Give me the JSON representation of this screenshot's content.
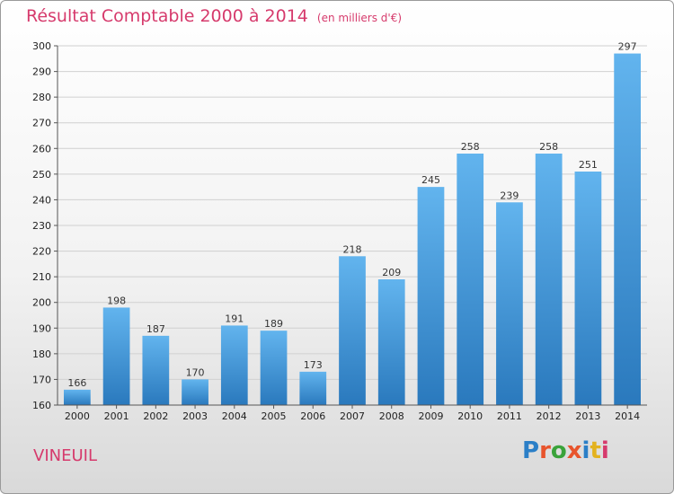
{
  "title": "Résultat Comptable 2000 à 2014",
  "unit": "(en milliers d'€)",
  "commune": "VINEUIL",
  "brand": {
    "text": "Proxiti",
    "letters": [
      "P",
      "r",
      "o",
      "x",
      "i",
      "t",
      "i"
    ],
    "letter_colors": [
      "#2b7fc7",
      "#e8542c",
      "#3aa33a",
      "#e8542c",
      "#2b7fc7",
      "#e3b21e",
      "#d63a6c"
    ]
  },
  "colors": {
    "bar_top": "#62b4ee",
    "bar_bottom": "#2a79bd",
    "accent": "#d63a6c"
  },
  "chart_data": {
    "type": "bar",
    "categories": [
      "2000",
      "2001",
      "2002",
      "2003",
      "2004",
      "2005",
      "2006",
      "2007",
      "2008",
      "2009",
      "2010",
      "2011",
      "2012",
      "2013",
      "2014"
    ],
    "values": [
      166,
      198,
      187,
      170,
      191,
      189,
      173,
      218,
      209,
      245,
      258,
      239,
      258,
      251,
      297
    ],
    "ylim": [
      160,
      300
    ],
    "yticks": [
      160,
      170,
      180,
      190,
      200,
      210,
      220,
      230,
      240,
      250,
      260,
      270,
      280,
      290,
      300
    ],
    "grid": true
  }
}
